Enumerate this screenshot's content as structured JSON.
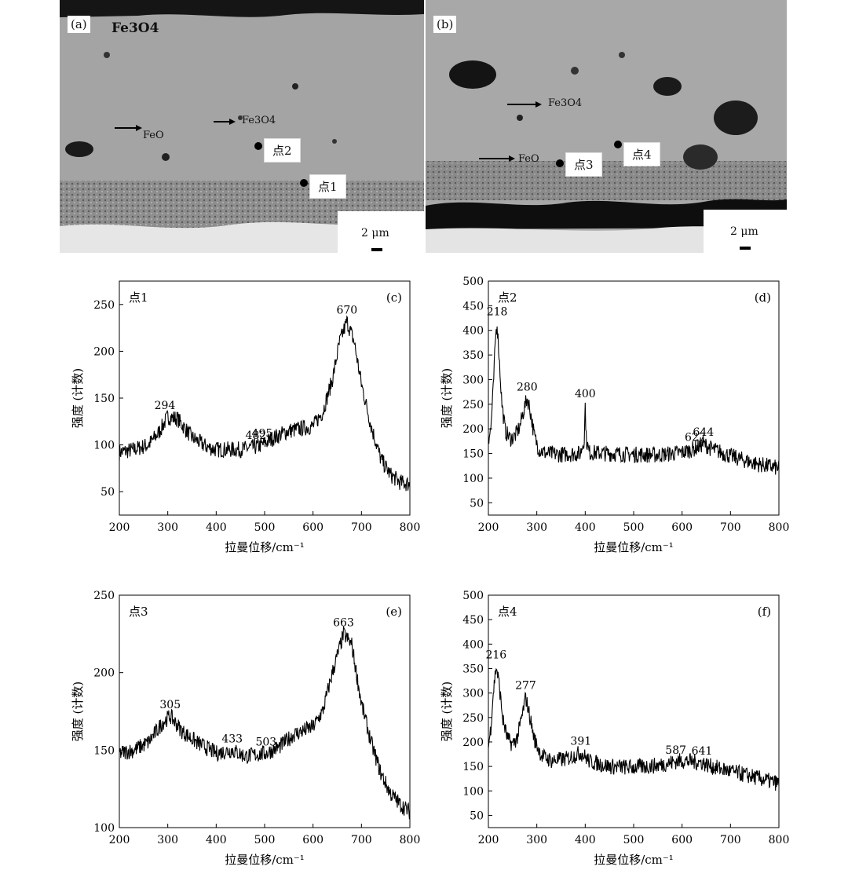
{
  "images": {
    "a": {
      "tag": "(a)",
      "fe_label": "Fe3O4",
      "labels": [
        {
          "text": "FeO",
          "x": 0
        },
        {
          "text": "Fe3O4",
          "x": 0
        }
      ],
      "points": [
        "点2",
        "点1"
      ],
      "scale": "2 μm"
    },
    "b": {
      "tag": "(b)",
      "labels": [
        {
          "text": "Fe3O4"
        },
        {
          "text": "FeO"
        }
      ],
      "points": [
        "点3",
        "点4"
      ],
      "scale": "2 μm"
    }
  },
  "chart_data": [
    {
      "type": "line",
      "panel": "(c)",
      "point_label": "点1",
      "xlabel": "拉曼位移/cm⁻¹",
      "ylabel": "强度 (计数)",
      "xlim": [
        200,
        800
      ],
      "ylim": [
        25,
        275
      ],
      "xticks": [
        200,
        300,
        400,
        500,
        600,
        700,
        800
      ],
      "yticks": [
        50,
        100,
        150,
        200,
        250
      ],
      "x_end": 800,
      "series": [
        {
          "x": [
            200,
            230,
            260,
            280,
            300,
            320,
            350,
            380,
            400,
            450,
            482,
            495,
            520,
            550,
            580,
            600,
            620,
            640,
            655,
            670,
            685,
            700,
            720,
            740,
            760,
            780,
            800
          ],
          "y": [
            92,
            95,
            100,
            112,
            130,
            128,
            108,
            98,
            95,
            95,
            98,
            100,
            108,
            115,
            118,
            120,
            135,
            170,
            210,
            232,
            210,
            165,
            120,
            85,
            68,
            60,
            58
          ]
        }
      ],
      "annotations": [
        {
          "text": "294",
          "x": 294,
          "y": 130
        },
        {
          "text": "482",
          "x": 482,
          "y": 98
        },
        {
          "text": "495",
          "x": 495,
          "y": 100
        },
        {
          "text": "670",
          "x": 670,
          "y": 232
        }
      ]
    },
    {
      "type": "line",
      "panel": "(d)",
      "point_label": "点2",
      "xlabel": "拉曼位移/cm⁻¹",
      "ylabel": "强度 (计数)",
      "xlim": [
        200,
        800
      ],
      "ylim": [
        25,
        500
      ],
      "xticks": [
        200,
        300,
        400,
        500,
        600,
        700,
        800
      ],
      "yticks": [
        50,
        100,
        150,
        200,
        250,
        300,
        350,
        400,
        450,
        500
      ],
      "x_end": 800,
      "series": [
        {
          "x": [
            200,
            205,
            210,
            215,
            218,
            222,
            228,
            235,
            245,
            255,
            265,
            275,
            280,
            285,
            295,
            305,
            320,
            350,
            390,
            398,
            400,
            402,
            408,
            450,
            500,
            550,
            600,
            627,
            644,
            660,
            700,
            750,
            800
          ],
          "y": [
            180,
            200,
            280,
            390,
            415,
            350,
            250,
            195,
            180,
            185,
            205,
            245,
            262,
            245,
            185,
            158,
            150,
            148,
            150,
            180,
            248,
            180,
            152,
            150,
            148,
            147,
            152,
            160,
            170,
            160,
            145,
            130,
            120
          ]
        }
      ],
      "annotations": [
        {
          "text": "218",
          "x": 218,
          "y": 415
        },
        {
          "text": "280",
          "x": 280,
          "y": 262
        },
        {
          "text": "400",
          "x": 400,
          "y": 248
        },
        {
          "text": "627",
          "x": 627,
          "y": 160
        },
        {
          "text": "644",
          "x": 644,
          "y": 170
        }
      ]
    },
    {
      "type": "line",
      "panel": "(e)",
      "point_label": "点3",
      "xlabel": "拉曼位移/cm⁻¹",
      "ylabel": "强度 (计数)",
      "xlim": [
        200,
        800
      ],
      "ylim": [
        100,
        250
      ],
      "xticks": [
        200,
        300,
        400,
        500,
        600,
        700,
        800
      ],
      "yticks": [
        100,
        150,
        200,
        250
      ],
      "x_end": 800,
      "series": [
        {
          "x": [
            200,
            230,
            260,
            290,
            305,
            330,
            360,
            400,
            433,
            460,
            503,
            530,
            560,
            600,
            620,
            640,
            663,
            680,
            700,
            720,
            740,
            760,
            780,
            800
          ],
          "y": [
            148,
            150,
            155,
            168,
            172,
            162,
            155,
            148,
            150,
            146,
            148,
            152,
            160,
            165,
            175,
            200,
            225,
            218,
            180,
            155,
            135,
            122,
            115,
            110
          ]
        }
      ],
      "annotations": [
        {
          "text": "305",
          "x": 305,
          "y": 172
        },
        {
          "text": "433",
          "x": 433,
          "y": 150
        },
        {
          "text": "503",
          "x": 503,
          "y": 148
        },
        {
          "text": "663",
          "x": 663,
          "y": 225
        }
      ]
    },
    {
      "type": "line",
      "panel": "(f)",
      "point_label": "点4",
      "xlabel": "拉曼位移/cm⁻¹",
      "ylabel": "强度 (计数)",
      "xlim": [
        200,
        800
      ],
      "ylim": [
        25,
        500
      ],
      "xticks": [
        200,
        300,
        400,
        500,
        600,
        700,
        800
      ],
      "yticks": [
        50,
        100,
        150,
        200,
        250,
        300,
        350,
        400,
        450,
        500
      ],
      "x_end": 800,
      "series": [
        {
          "x": [
            200,
            205,
            210,
            216,
            222,
            230,
            240,
            250,
            260,
            270,
            277,
            285,
            295,
            310,
            330,
            360,
            391,
            410,
            450,
            500,
            550,
            587,
            600,
            641,
            660,
            700,
            750,
            800
          ],
          "y": [
            190,
            230,
            300,
            355,
            320,
            245,
            205,
            195,
            210,
            255,
            292,
            255,
            205,
            172,
            162,
            165,
            178,
            160,
            150,
            148,
            152,
            160,
            162,
            158,
            150,
            140,
            128,
            115
          ]
        }
      ],
      "annotations": [
        {
          "text": "216",
          "x": 216,
          "y": 355
        },
        {
          "text": "277",
          "x": 277,
          "y": 292
        },
        {
          "text": "391",
          "x": 391,
          "y": 178
        },
        {
          "text": "587",
          "x": 587,
          "y": 160
        },
        {
          "text": "641",
          "x": 641,
          "y": 158
        }
      ]
    }
  ]
}
